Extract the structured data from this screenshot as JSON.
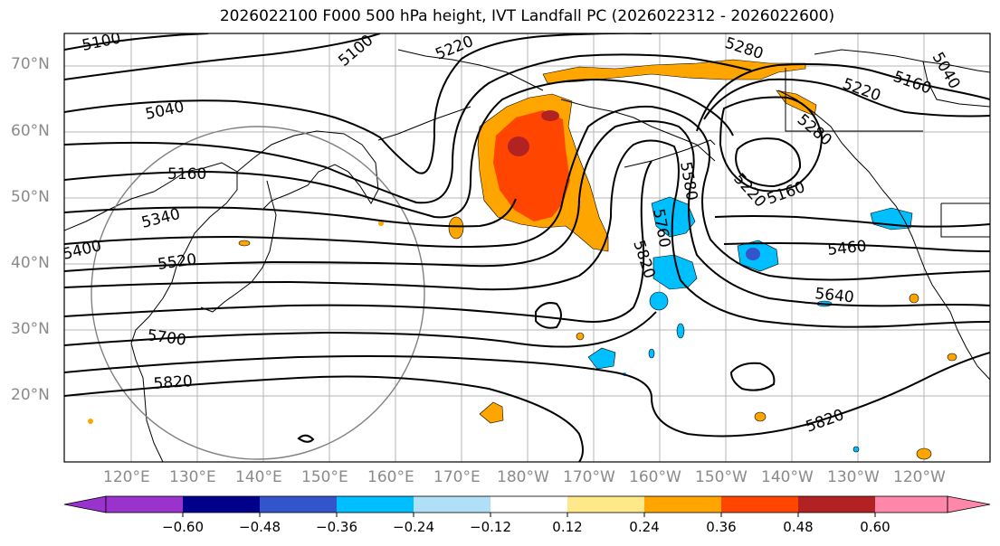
{
  "title": "2026022100 F000 500 hPa height, IVT Landfall PC (2026022312 - 2026022600)",
  "lat_labels": [
    "70°N",
    "60°N",
    "50°N",
    "40°N",
    "30°N",
    "20°N"
  ],
  "lon_labels": [
    "120°E",
    "130°E",
    "140°E",
    "150°E",
    "160°E",
    "170°E",
    "180°W",
    "170°W",
    "160°W",
    "150°W",
    "140°W",
    "130°W",
    "120°W"
  ],
  "contour_labels": [
    "5100",
    "5100",
    "5220",
    "5280",
    "5040",
    "5160",
    "5340",
    "5400",
    "5520",
    "5700",
    "5820",
    "5220",
    "5160",
    "5040",
    "5280",
    "5580",
    "5760",
    "5820",
    "5220",
    "5160",
    "5460",
    "5640",
    "5820"
  ],
  "colorbar": {
    "ticks": [
      "−0.60",
      "−0.48",
      "−0.36",
      "−0.24",
      "−0.12",
      "0.12",
      "0.24",
      "0.36",
      "0.48",
      "0.60"
    ],
    "colors": [
      "#9933cc",
      "#00008b",
      "#3355cc",
      "#00bfff",
      "#b0e0f8",
      "#ffffff",
      "#ffe88a",
      "#ffa500",
      "#ff4500",
      "#b22222",
      "#ff88aa"
    ]
  },
  "colors": {
    "positive_orange": "#ffa500",
    "positive_red": "#ff4500",
    "negative_cyan": "#00bfff",
    "negative_purple": "#6a3cc8"
  }
}
